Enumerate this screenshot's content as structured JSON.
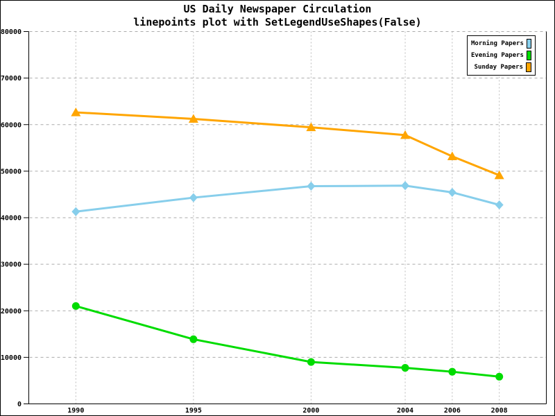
{
  "window": {
    "background": "#ffffff",
    "border_color": "#000000"
  },
  "chart_data": {
    "type": "line",
    "variant": "linepoints",
    "title": "US Daily Newspaper Circulation",
    "subtitle": "linepoints plot with SetLegendUseShapes(False)",
    "x": [
      1990,
      1995,
      2000,
      2004,
      2006,
      2008
    ],
    "series": [
      {
        "name": "Morning Papers",
        "color": "#87CEEB",
        "marker": "diamond",
        "values": [
          41311,
          44310,
          46772,
          46887,
          45441,
          42757
        ]
      },
      {
        "name": "Evening Papers",
        "color": "#00DC00",
        "marker": "circle",
        "values": [
          21017,
          13883,
          9000,
          7738,
          6900,
          5840
        ]
      },
      {
        "name": "Sunday Papers",
        "color": "#FFA500",
        "marker": "triangle-up",
        "values": [
          62635,
          61229,
          59421,
          57754,
          53179,
          49115
        ]
      }
    ],
    "xlabel": "",
    "ylabel": "",
    "xlim": [
      1988,
      2010
    ],
    "ylim": [
      0,
      80000
    ],
    "x_ticks": [
      {
        "value": 1990,
        "label": "1990"
      },
      {
        "value": 1995,
        "label": "1995"
      },
      {
        "value": 2000,
        "label": "2000"
      },
      {
        "value": 2004,
        "label": "2004"
      },
      {
        "value": 2006,
        "label": "2006"
      },
      {
        "value": 2008,
        "label": "2008"
      }
    ],
    "y_ticks": [
      {
        "value": 0,
        "label": "0"
      },
      {
        "value": 10000,
        "label": "10000"
      },
      {
        "value": 20000,
        "label": "20000"
      },
      {
        "value": 30000,
        "label": "30000"
      },
      {
        "value": 40000,
        "label": "40000"
      },
      {
        "value": 50000,
        "label": "50000"
      },
      {
        "value": 60000,
        "label": "60000"
      },
      {
        "value": 70000,
        "label": "70000"
      },
      {
        "value": 80000,
        "label": "80000"
      }
    ],
    "grid": true,
    "legend_position": "top-right",
    "axis_color": "#000000",
    "h_grid_color": "#aaaaaa",
    "v_grid_color": "#bbbbbb"
  }
}
